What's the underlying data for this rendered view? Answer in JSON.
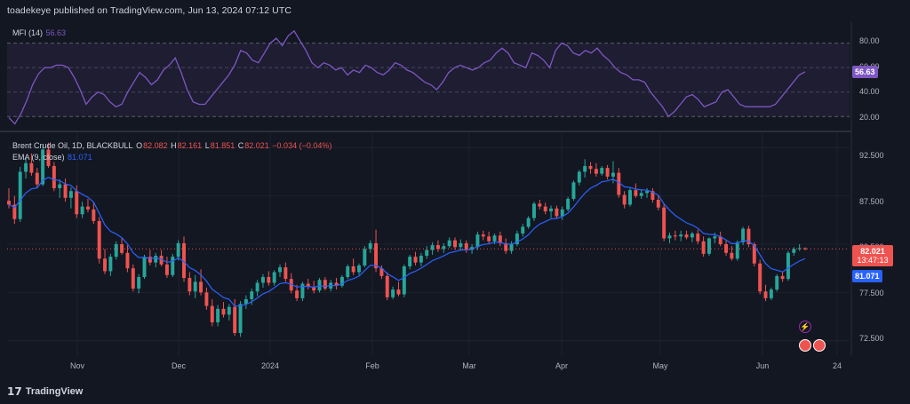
{
  "header": {
    "text": "toadekeye published on TradingView.com, Jun 13, 2024 07:12 UTC"
  },
  "footer": {
    "logo_mark": "17",
    "brand": "TradingView"
  },
  "mfi": {
    "name": "MFI (14)",
    "value": "56.63",
    "color": "#7e57c2",
    "levels": [
      "80.00",
      "60.00",
      "40.00",
      "20.00"
    ],
    "ylim": [
      10,
      95
    ]
  },
  "price": {
    "symbol": "Brent Crude Oil, 1D, BLACKBULL",
    "o_label": "O",
    "o": "82.082",
    "h_label": "H",
    "h": "82.161",
    "l_label": "L",
    "l": "81.851",
    "c_label": "C",
    "c": "82.021",
    "change": "−0.034 (−0.04%)",
    "ema_name": "EMA (9, close)",
    "ema_value": "81.071",
    "last_price": "82.021",
    "countdown": "13:47:13",
    "ema_tag": "81.071",
    "yticks": [
      "92.500",
      "87.500",
      "82.500",
      "77.500",
      "72.500"
    ],
    "ylim": [
      71.0,
      94.0
    ]
  },
  "colors": {
    "up": "#26a69a",
    "down": "#ef5350",
    "ema": "#2962ff",
    "mfi": "#7e57c2",
    "bg": "#131722",
    "grid": "#1e222d"
  },
  "xaxis": [
    "Nov",
    "Dec",
    "2024",
    "Feb",
    "Mar",
    "Apr",
    "May",
    "Jun",
    "24"
  ],
  "chart_data": [
    {
      "type": "line",
      "title": "MFI (14)",
      "ylim": [
        10,
        95
      ],
      "levels": [
        80,
        60,
        40,
        20
      ],
      "series": [
        {
          "name": "MFI (14)",
          "values": [
            19,
            14,
            22,
            33,
            46,
            55,
            60,
            60,
            62,
            62,
            60,
            52,
            42,
            30,
            36,
            40,
            38,
            32,
            28,
            30,
            40,
            48,
            56,
            52,
            46,
            50,
            58,
            62,
            68,
            56,
            42,
            32,
            30,
            30,
            36,
            42,
            48,
            54,
            62,
            74,
            72,
            66,
            64,
            72,
            80,
            84,
            78,
            86,
            90,
            82,
            74,
            64,
            60,
            64,
            62,
            58,
            60,
            54,
            58,
            56,
            62,
            60,
            56,
            54,
            58,
            64,
            62,
            58,
            56,
            52,
            48,
            46,
            42,
            48,
            56,
            60,
            62,
            60,
            58,
            60,
            64,
            66,
            72,
            76,
            72,
            64,
            62,
            60,
            72,
            70,
            66,
            60,
            74,
            80,
            78,
            72,
            70,
            74,
            72,
            76,
            70,
            66,
            60,
            56,
            54,
            50,
            50,
            48,
            40,
            34,
            28,
            20,
            24,
            30,
            36,
            38,
            34,
            28,
            30,
            32,
            40,
            42,
            36,
            30,
            28,
            28,
            28,
            28,
            28,
            30,
            36,
            42,
            48,
            54,
            56.63
          ]
        }
      ]
    },
    {
      "type": "candlestick",
      "title": "Brent Crude Oil, 1D, BLACKBULL",
      "ylim": [
        71.0,
        94.0
      ],
      "x": [
        "Nov",
        "Dec",
        "2024",
        "Feb",
        "Mar",
        "Apr",
        "May",
        "Jun",
        "24"
      ],
      "ohlc": [
        [
          87.0,
          88.3,
          86.2,
          86.6
        ],
        [
          86.6,
          87.5,
          84.6,
          85.1
        ],
        [
          85.1,
          90.5,
          84.8,
          90.0
        ],
        [
          90.0,
          91.4,
          89.3,
          90.9
        ],
        [
          90.9,
          91.9,
          89.6,
          89.9
        ],
        [
          89.9,
          90.4,
          88.3,
          88.7
        ],
        [
          88.7,
          92.8,
          88.5,
          92.3
        ],
        [
          92.3,
          93.0,
          90.4,
          90.6
        ],
        [
          90.6,
          91.0,
          88.0,
          88.3
        ],
        [
          88.3,
          89.2,
          87.3,
          88.7
        ],
        [
          88.7,
          89.3,
          86.9,
          87.3
        ],
        [
          87.3,
          88.4,
          86.2,
          88.0
        ],
        [
          88.0,
          88.6,
          85.2,
          85.6
        ],
        [
          85.6,
          86.9,
          85.2,
          86.4
        ],
        [
          86.4,
          87.2,
          85.8,
          86.1
        ],
        [
          86.1,
          86.8,
          84.6,
          84.9
        ],
        [
          84.9,
          85.3,
          80.5,
          81.0
        ],
        [
          81.0,
          82.0,
          79.4,
          79.7
        ],
        [
          79.7,
          81.5,
          79.2,
          81.2
        ],
        [
          81.2,
          82.8,
          80.9,
          82.5
        ],
        [
          82.5,
          83.2,
          81.4,
          81.6
        ],
        [
          81.6,
          82.4,
          79.6,
          80.0
        ],
        [
          80.0,
          80.4,
          77.6,
          77.9
        ],
        [
          77.9,
          79.4,
          77.4,
          79.1
        ],
        [
          79.1,
          81.4,
          78.9,
          81.2
        ],
        [
          81.2,
          81.9,
          80.3,
          80.6
        ],
        [
          80.6,
          81.6,
          80.1,
          81.3
        ],
        [
          81.3,
          81.9,
          80.2,
          80.4
        ],
        [
          80.4,
          81.2,
          79.0,
          79.3
        ],
        [
          79.3,
          81.5,
          79.1,
          81.2
        ],
        [
          81.2,
          82.9,
          80.8,
          82.6
        ],
        [
          82.6,
          83.3,
          78.6,
          79.0
        ],
        [
          79.0,
          79.6,
          77.2,
          77.6
        ],
        [
          77.6,
          79.3,
          76.9,
          78.6
        ],
        [
          78.6,
          79.9,
          77.2,
          77.5
        ],
        [
          77.5,
          78.0,
          75.7,
          76.1
        ],
        [
          76.1,
          76.8,
          74.0,
          74.4
        ],
        [
          74.4,
          76.2,
          74.0,
          75.8
        ],
        [
          75.8,
          76.5,
          74.9,
          75.2
        ],
        [
          75.2,
          76.3,
          74.6,
          76.0
        ],
        [
          76.0,
          76.8,
          73.0,
          73.3
        ],
        [
          73.3,
          76.6,
          72.9,
          76.3
        ],
        [
          76.3,
          77.2,
          75.8,
          76.8
        ],
        [
          76.8,
          77.9,
          76.2,
          77.6
        ],
        [
          77.6,
          78.8,
          77.1,
          78.5
        ],
        [
          78.5,
          79.4,
          78.0,
          79.1
        ],
        [
          79.1,
          79.7,
          78.2,
          78.5
        ],
        [
          78.5,
          79.8,
          78.2,
          79.6
        ],
        [
          79.6,
          80.4,
          79.1,
          80.1
        ],
        [
          80.1,
          80.6,
          78.6,
          78.9
        ],
        [
          78.9,
          79.5,
          77.4,
          77.7
        ],
        [
          77.7,
          78.3,
          76.6,
          76.9
        ],
        [
          76.9,
          78.6,
          76.6,
          78.4
        ],
        [
          78.4,
          78.9,
          77.8,
          78.1
        ],
        [
          78.1,
          78.7,
          77.4,
          77.7
        ],
        [
          77.7,
          79.0,
          77.5,
          78.8
        ],
        [
          78.8,
          79.1,
          77.7,
          77.9
        ],
        [
          77.9,
          78.8,
          77.6,
          78.5
        ],
        [
          78.5,
          79.0,
          77.8,
          78.2
        ],
        [
          78.2,
          79.3,
          78.0,
          79.1
        ],
        [
          79.1,
          80.4,
          78.9,
          80.2
        ],
        [
          80.2,
          81.0,
          79.3,
          79.6
        ],
        [
          79.6,
          80.5,
          79.3,
          80.3
        ],
        [
          80.3,
          82.3,
          80.1,
          82.0
        ],
        [
          82.0,
          82.9,
          81.6,
          82.6
        ],
        [
          82.6,
          84.0,
          79.6,
          80.0
        ],
        [
          80.0,
          80.3,
          78.9,
          79.2
        ],
        [
          79.2,
          79.6,
          76.7,
          77.0
        ],
        [
          77.0,
          78.1,
          76.8,
          77.8
        ],
        [
          77.8,
          78.6,
          77.1,
          77.3
        ],
        [
          77.3,
          80.4,
          77.0,
          80.2
        ],
        [
          80.2,
          81.4,
          79.9,
          81.2
        ],
        [
          81.2,
          81.7,
          80.3,
          80.6
        ],
        [
          80.6,
          81.6,
          80.2,
          81.3
        ],
        [
          81.3,
          82.3,
          81.0,
          81.9
        ],
        [
          81.9,
          82.7,
          81.4,
          82.4
        ],
        [
          82.4,
          82.9,
          81.7,
          82.0
        ],
        [
          82.0,
          82.6,
          81.6,
          82.3
        ],
        [
          82.3,
          83.2,
          82.1,
          82.9
        ],
        [
          82.9,
          83.2,
          81.9,
          82.2
        ],
        [
          82.2,
          83.0,
          81.8,
          82.6
        ],
        [
          82.6,
          82.9,
          81.6,
          81.9
        ],
        [
          81.9,
          82.5,
          81.5,
          82.2
        ],
        [
          82.2,
          83.8,
          81.9,
          83.5
        ],
        [
          83.5,
          83.9,
          82.9,
          83.3
        ],
        [
          83.3,
          83.8,
          82.5,
          82.8
        ],
        [
          82.8,
          83.6,
          82.5,
          83.4
        ],
        [
          83.4,
          83.8,
          82.3,
          82.6
        ],
        [
          82.6,
          83.1,
          81.5,
          81.8
        ],
        [
          81.8,
          82.8,
          81.5,
          82.5
        ],
        [
          82.5,
          83.9,
          82.3,
          83.6
        ],
        [
          83.6,
          84.6,
          83.3,
          84.3
        ],
        [
          84.3,
          85.4,
          84.1,
          85.2
        ],
        [
          85.2,
          86.9,
          84.9,
          86.7
        ],
        [
          86.7,
          87.1,
          86.1,
          86.4
        ],
        [
          86.4,
          86.8,
          85.6,
          85.9
        ],
        [
          85.9,
          86.5,
          85.2,
          86.2
        ],
        [
          86.2,
          86.5,
          85.1,
          85.4
        ],
        [
          85.4,
          86.4,
          85.0,
          86.1
        ],
        [
          86.1,
          87.4,
          85.9,
          87.2
        ],
        [
          87.2,
          89.1,
          87.0,
          88.9
        ],
        [
          88.9,
          90.2,
          88.6,
          90.0
        ],
        [
          90.0,
          91.3,
          89.4,
          90.6
        ],
        [
          90.6,
          91.0,
          89.8,
          90.3
        ],
        [
          90.3,
          90.9,
          89.5,
          89.8
        ],
        [
          89.8,
          90.6,
          89.6,
          90.4
        ],
        [
          90.4,
          90.7,
          89.2,
          89.5
        ],
        [
          89.5,
          91.1,
          88.8,
          89.9
        ],
        [
          89.9,
          90.4,
          87.3,
          87.6
        ],
        [
          87.6,
          88.0,
          86.2,
          86.6
        ],
        [
          86.6,
          88.3,
          86.4,
          88.1
        ],
        [
          88.1,
          88.8,
          87.3,
          87.5
        ],
        [
          87.5,
          88.2,
          87.2,
          87.8
        ],
        [
          87.8,
          88.3,
          87.3,
          88.0
        ],
        [
          88.0,
          88.3,
          86.8,
          87.1
        ],
        [
          87.1,
          87.6,
          86.0,
          86.3
        ],
        [
          86.3,
          86.7,
          82.8,
          83.1
        ],
        [
          83.1,
          83.7,
          82.6,
          83.4
        ],
        [
          83.4,
          83.9,
          82.9,
          83.3
        ],
        [
          83.3,
          83.9,
          82.8,
          83.5
        ],
        [
          83.5,
          83.9,
          83.0,
          83.2
        ],
        [
          83.2,
          83.8,
          82.7,
          83.6
        ],
        [
          83.6,
          84.0,
          82.5,
          82.8
        ],
        [
          82.8,
          83.3,
          81.2,
          81.5
        ],
        [
          81.5,
          83.2,
          81.3,
          83.1
        ],
        [
          83.1,
          83.7,
          82.6,
          83.3
        ],
        [
          83.3,
          83.8,
          82.3,
          82.5
        ],
        [
          82.5,
          82.9,
          81.3,
          81.6
        ],
        [
          81.6,
          82.3,
          80.8,
          81.0
        ],
        [
          81.0,
          82.9,
          80.8,
          82.7
        ],
        [
          82.7,
          84.3,
          82.4,
          84.1
        ],
        [
          84.1,
          84.4,
          82.2,
          82.5
        ],
        [
          82.5,
          82.7,
          80.2,
          80.5
        ],
        [
          80.5,
          80.9,
          77.3,
          77.6
        ],
        [
          77.6,
          78.3,
          76.6,
          76.9
        ],
        [
          76.9,
          78.0,
          76.7,
          77.8
        ],
        [
          77.8,
          79.4,
          77.6,
          79.2
        ],
        [
          79.2,
          79.6,
          78.6,
          78.9
        ],
        [
          78.9,
          81.8,
          78.7,
          81.6
        ],
        [
          81.6,
          82.2,
          81.3,
          82.0
        ],
        [
          82.0,
          82.5,
          81.8,
          82.1
        ],
        [
          82.082,
          82.161,
          81.851,
          82.021
        ]
      ],
      "series": [
        {
          "name": "EMA (9, close)",
          "last": 81.071
        }
      ]
    }
  ]
}
